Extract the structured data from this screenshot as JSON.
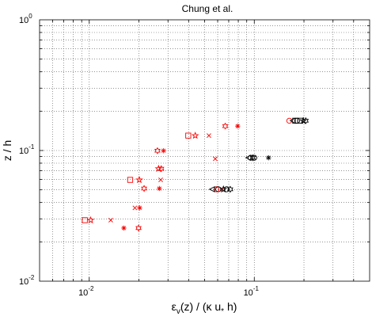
{
  "chart_data": {
    "type": "scatter",
    "title": "Chung et al.",
    "xlabel_main": "ε",
    "xlabel_sub": "v",
    "xlabel_rest": "(z) / (κ u",
    "xlabel_sub2": "*",
    "xlabel_end": " h)",
    "ylabel": "z / h",
    "xscale": "log",
    "yscale": "log",
    "xlim": [
      0.005,
      0.5
    ],
    "ylim": [
      0.01,
      1
    ],
    "grid": true,
    "grid_style": "dotted",
    "x_ticks": [
      {
        "value": 0.01,
        "base": "10",
        "exp": "-2"
      },
      {
        "value": 0.1,
        "base": "10",
        "exp": "-1"
      }
    ],
    "y_ticks": [
      {
        "value": 0.01,
        "base": "10",
        "exp": "-2"
      },
      {
        "value": 0.1,
        "base": "10",
        "exp": "-1"
      },
      {
        "value": 1,
        "base": "10",
        "exp": "0"
      }
    ],
    "colors": {
      "red": "#ff0000",
      "black": "#000000"
    },
    "series": [
      {
        "color": "#ff0000",
        "points": [
          {
            "x": 0.0094,
            "y": 0.0293,
            "marker": "square"
          },
          {
            "x": 0.0102,
            "y": 0.0293,
            "marker": "star5"
          },
          {
            "x": 0.0135,
            "y": 0.0293,
            "marker": "x"
          },
          {
            "x": 0.0162,
            "y": 0.0255,
            "marker": "asterisk"
          },
          {
            "x": 0.0199,
            "y": 0.0255,
            "marker": "hexagram"
          },
          {
            "x": 0.0189,
            "y": 0.0364,
            "marker": "x"
          },
          {
            "x": 0.0202,
            "y": 0.0364,
            "marker": "asterisk"
          },
          {
            "x": 0.0177,
            "y": 0.0596,
            "marker": "square"
          },
          {
            "x": 0.0201,
            "y": 0.0596,
            "marker": "star5"
          },
          {
            "x": 0.0215,
            "y": 0.0512,
            "marker": "hexagram"
          },
          {
            "x": 0.0266,
            "y": 0.0512,
            "marker": "asterisk"
          },
          {
            "x": 0.0271,
            "y": 0.0596,
            "marker": "x"
          },
          {
            "x": 0.0263,
            "y": 0.0726,
            "marker": "star5"
          },
          {
            "x": 0.0273,
            "y": 0.0726,
            "marker": "hexagram"
          },
          {
            "x": 0.0259,
            "y": 0.0996,
            "marker": "hexagram"
          },
          {
            "x": 0.0282,
            "y": 0.0996,
            "marker": "asterisk"
          },
          {
            "x": 0.0398,
            "y": 0.13,
            "marker": "square"
          },
          {
            "x": 0.0439,
            "y": 0.13,
            "marker": "star5"
          },
          {
            "x": 0.0531,
            "y": 0.13,
            "marker": "x"
          },
          {
            "x": 0.0667,
            "y": 0.1537,
            "marker": "hexagram"
          },
          {
            "x": 0.0793,
            "y": 0.1537,
            "marker": "asterisk"
          },
          {
            "x": 0.059,
            "y": 0.0505,
            "marker": "circle"
          },
          {
            "x": 0.064,
            "y": 0.0505,
            "marker": "x"
          },
          {
            "x": 0.058,
            "y": 0.0864,
            "marker": "x"
          },
          {
            "x": 0.163,
            "y": 0.169,
            "marker": "circle"
          }
        ]
      },
      {
        "color": "#000000",
        "points": [
          {
            "x": 0.0555,
            "y": 0.0505,
            "marker": "triangle"
          },
          {
            "x": 0.0605,
            "y": 0.0505,
            "marker": "circle"
          },
          {
            "x": 0.065,
            "y": 0.0505,
            "marker": "star5"
          },
          {
            "x": 0.068,
            "y": 0.0505,
            "marker": "circle"
          },
          {
            "x": 0.0715,
            "y": 0.0505,
            "marker": "hexagram"
          },
          {
            "x": 0.092,
            "y": 0.088,
            "marker": "triangle"
          },
          {
            "x": 0.095,
            "y": 0.088,
            "marker": "circle"
          },
          {
            "x": 0.098,
            "y": 0.088,
            "marker": "hexagram"
          },
          {
            "x": 0.1,
            "y": 0.088,
            "marker": "circle"
          },
          {
            "x": 0.122,
            "y": 0.088,
            "marker": "asterisk"
          },
          {
            "x": 0.171,
            "y": 0.169,
            "marker": "triangle"
          },
          {
            "x": 0.177,
            "y": 0.169,
            "marker": "square"
          },
          {
            "x": 0.182,
            "y": 0.169,
            "marker": "circle"
          },
          {
            "x": 0.19,
            "y": 0.169,
            "marker": "square"
          },
          {
            "x": 0.198,
            "y": 0.169,
            "marker": "star5"
          },
          {
            "x": 0.205,
            "y": 0.169,
            "marker": "hexagram"
          }
        ]
      }
    ]
  }
}
